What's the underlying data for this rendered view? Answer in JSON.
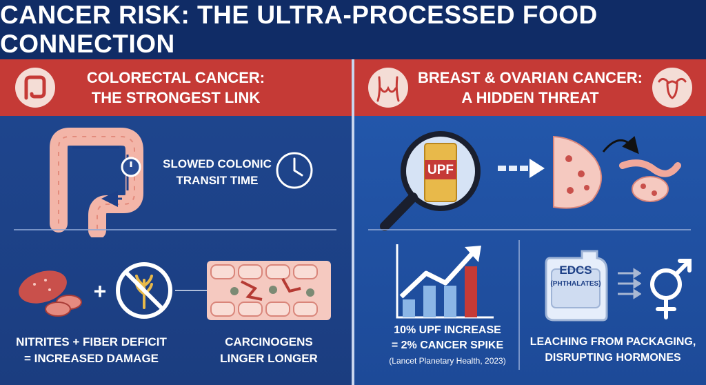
{
  "header": {
    "title": "CANCER RISK: THE ULTRA-PROCESSED FOOD CONNECTION"
  },
  "left_panel": {
    "heading_line1": "COLORECTAL CANCER:",
    "heading_line2": "THE STRONGEST LINK",
    "transit_line1": "SLOWED COLONIC",
    "transit_line2": "TRANSIT TIME",
    "nitrites_line1": "NITRITES + FIBER DEFICIT",
    "nitrites_line2": "= INCREASED DAMAGE",
    "plus_sign": "+",
    "carcinogens_line1": "CARCINOGENS",
    "carcinogens_line2": "LINGER LONGER"
  },
  "right_panel": {
    "heading_line1": "BREAST & OVARIAN CANCER:",
    "heading_line2": "A HIDDEN THREAT",
    "upf_label": "UPF",
    "stat_line1": "10% UPF INCREASE",
    "stat_line2": "= 2% CANCER SPIKE",
    "source": "(Lancet Planetary Health, 2023)",
    "edc_label": "EDCs",
    "edc_sub": "(PHTHALATES)",
    "leach_line1": "LEACHING FROM PACKAGING,",
    "leach_line2": "DISRUPTING HORMONES"
  },
  "colors": {
    "title_bg": "#102c66",
    "banner_red": "#c53a36",
    "left_bg": "#1f4790",
    "right_bg": "#2459ae"
  }
}
